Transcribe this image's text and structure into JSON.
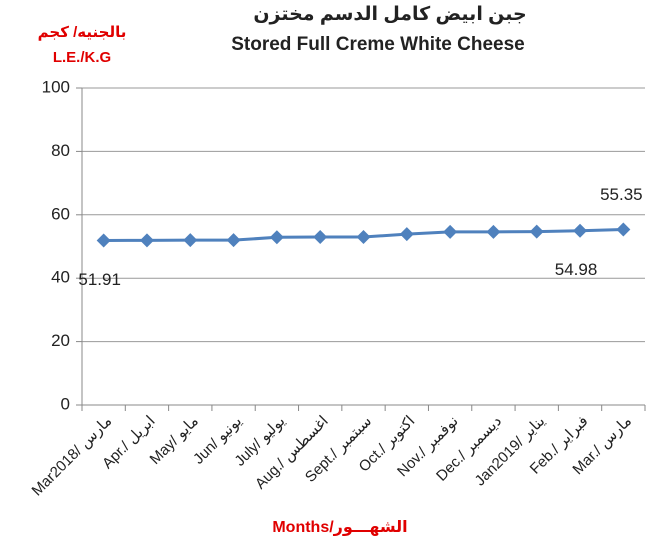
{
  "chart_data": {
    "type": "line",
    "title": "جبن ابيض كامل الدسم مختزن",
    "subtitle": "Stored Full Creme White Cheese",
    "y_unit_ar": "بالجنيه/ كجم",
    "y_unit_en": "L.E./K.G",
    "x_label": "Months/الشهـــور",
    "categories": [
      "Mar2018/ مارس",
      "Apr./ ابريل",
      "May/ مايو",
      "Jun/ يونيو",
      "July/ يوليو",
      "Aug./ اغسطس",
      "Sept./ سبتمبر",
      "Oct./ اكتوبر",
      "Nov./ نوفمبر",
      "Dec./ ديسمبر",
      "Jan2019/ يناير",
      "Feb./ فبراير",
      "Mar./ مارس"
    ],
    "series": [
      {
        "name": "Stored Full Creme White Cheese",
        "color": "#4f81bd",
        "values": [
          51.91,
          51.95,
          52.0,
          52.0,
          52.9,
          53.0,
          53.0,
          53.9,
          54.6,
          54.6,
          54.7,
          54.98,
          55.35
        ],
        "value_labels": [
          "51.91",
          null,
          null,
          null,
          null,
          null,
          null,
          null,
          null,
          null,
          null,
          "54.98",
          "55.35"
        ]
      }
    ],
    "ylim": [
      0,
      100
    ],
    "yticks": [
      0,
      20,
      40,
      60,
      80,
      100
    ],
    "grid": true
  }
}
